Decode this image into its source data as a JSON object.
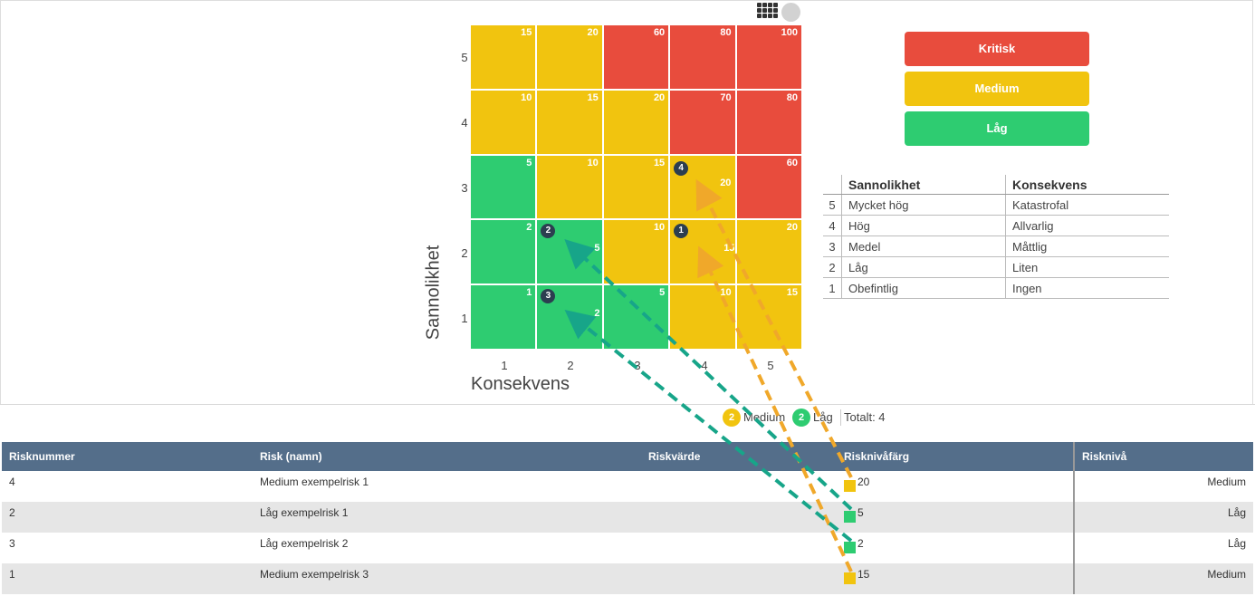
{
  "matrix": {
    "y_axis_label": "Sannolikhet",
    "x_axis_label": "Konsekvens",
    "y_ticks": [
      "5",
      "4",
      "3",
      "2",
      "1"
    ],
    "x_ticks": [
      "1",
      "2",
      "3",
      "4",
      "5"
    ],
    "rows": [
      [
        {
          "v": "15",
          "c": "yellow"
        },
        {
          "v": "20",
          "c": "yellow"
        },
        {
          "v": "60",
          "c": "red"
        },
        {
          "v": "80",
          "c": "red"
        },
        {
          "v": "100",
          "c": "red"
        }
      ],
      [
        {
          "v": "10",
          "c": "yellow"
        },
        {
          "v": "15",
          "c": "yellow"
        },
        {
          "v": "20",
          "c": "yellow"
        },
        {
          "v": "70",
          "c": "red"
        },
        {
          "v": "80",
          "c": "red"
        }
      ],
      [
        {
          "v": "5",
          "c": "green"
        },
        {
          "v": "10",
          "c": "yellow"
        },
        {
          "v": "15",
          "c": "yellow"
        },
        {
          "v": "",
          "c": "yellow"
        },
        {
          "v": "60",
          "c": "red"
        }
      ],
      [
        {
          "v": "2",
          "c": "green"
        },
        {
          "v": "",
          "c": "green"
        },
        {
          "v": "10",
          "c": "yellow"
        },
        {
          "v": "",
          "c": "yellow"
        },
        {
          "v": "20",
          "c": "yellow"
        }
      ],
      [
        {
          "v": "1",
          "c": "green"
        },
        {
          "v": "",
          "c": "green"
        },
        {
          "v": "5",
          "c": "green"
        },
        {
          "v": "10",
          "c": "yellow"
        },
        {
          "v": "15",
          "c": "yellow"
        }
      ]
    ],
    "markers": [
      {
        "label": "4",
        "sub": "20"
      },
      {
        "label": "2",
        "sub": "5"
      },
      {
        "label": "1",
        "sub": "15"
      },
      {
        "label": "3",
        "sub": "2"
      }
    ]
  },
  "legend": {
    "items": [
      {
        "label": "Kritisk",
        "color": "#e84c3d"
      },
      {
        "label": "Medium",
        "color": "#f1c40f"
      },
      {
        "label": "Låg",
        "color": "#2ecc71"
      }
    ]
  },
  "scale": {
    "headers": {
      "n": "",
      "sannolikhet": "Sannolikhet",
      "konsekvens": "Konsekvens"
    },
    "rows": [
      {
        "n": "5",
        "sannolikhet": "Mycket hög",
        "konsekvens": "Katastrofal"
      },
      {
        "n": "4",
        "sannolikhet": "Hög",
        "konsekvens": "Allvarlig"
      },
      {
        "n": "3",
        "sannolikhet": "Medel",
        "konsekvens": "Måttlig"
      },
      {
        "n": "2",
        "sannolikhet": "Låg",
        "konsekvens": "Liten"
      },
      {
        "n": "1",
        "sannolikhet": "Obefintlig",
        "konsekvens": "Ingen"
      }
    ]
  },
  "summary": {
    "medium_count": "2",
    "medium_label": "Medium",
    "low_count": "2",
    "low_label": "Låg",
    "total": "Totalt: 4"
  },
  "table": {
    "headers": {
      "risknummer": "Risknummer",
      "risk": "Risk (namn)",
      "riskvarde": "Riskvärde",
      "riskfarg": "Risknivåfärg",
      "riskniva": "Risknivå"
    },
    "rows": [
      {
        "nr": "4",
        "namn": "Medium exempelrisk 1",
        "varde": "",
        "farg": "#f1c40f",
        "farg_val": "20",
        "niva": "Medium"
      },
      {
        "nr": "2",
        "namn": "Låg exempelrisk 1",
        "varde": "",
        "farg": "#2ecc71",
        "farg_val": "5",
        "niva": "Låg"
      },
      {
        "nr": "3",
        "namn": "Låg exempelrisk 2",
        "varde": "",
        "farg": "#2ecc71",
        "farg_val": "2",
        "niva": "Låg"
      },
      {
        "nr": "1",
        "namn": "Medium exempelrisk 3",
        "varde": "",
        "farg": "#f1c40f",
        "farg_val": "15",
        "niva": "Medium"
      }
    ]
  },
  "colors": {
    "header_bg": "#546e8a",
    "arrow_medium": "#f0a82a",
    "arrow_low": "#17a589"
  }
}
